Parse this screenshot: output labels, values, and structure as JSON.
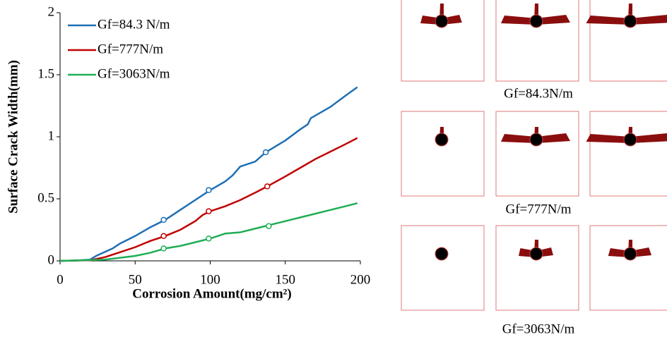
{
  "chart_data": {
    "type": "line",
    "x_label": "Corrosion Amount(mg/cm²)",
    "y_label": "Surface Crack Width(mm)",
    "xlim": [
      0,
      200
    ],
    "xticks": [
      0,
      50,
      100,
      150,
      200
    ],
    "ylim": [
      0,
      2
    ],
    "yticks": [
      0,
      0.5,
      1,
      1.5,
      2
    ],
    "legend": "upper-left",
    "series": [
      {
        "name": "Gf=84.3 N/m",
        "color": "#1f6fb4",
        "x": [
          0,
          10,
          20,
          24,
          35,
          40,
          50,
          60,
          70,
          80,
          90,
          100,
          110,
          115,
          120,
          130,
          137,
          150,
          160,
          165,
          167,
          180,
          190,
          198
        ],
        "values": [
          0,
          0.002,
          0.01,
          0.04,
          0.1,
          0.14,
          0.2,
          0.27,
          0.33,
          0.41,
          0.49,
          0.57,
          0.64,
          0.69,
          0.76,
          0.8,
          0.875,
          0.97,
          1.06,
          1.1,
          1.15,
          1.24,
          1.33,
          1.4
        ],
        "markers": {
          "x": [
            69,
            99,
            137
          ],
          "y": [
            0.33,
            0.57,
            0.875
          ]
        }
      },
      {
        "name": "Gf=777N/m",
        "color": "#c00000",
        "x": [
          0,
          20,
          30,
          40,
          50,
          60,
          70,
          80,
          90,
          95,
          100,
          110,
          120,
          130,
          138,
          150,
          160,
          170,
          180,
          190,
          198
        ],
        "values": [
          0,
          0.005,
          0.03,
          0.07,
          0.11,
          0.16,
          0.2,
          0.25,
          0.32,
          0.37,
          0.4,
          0.44,
          0.49,
          0.55,
          0.6,
          0.68,
          0.75,
          0.82,
          0.88,
          0.94,
          0.99
        ],
        "markers": {
          "x": [
            69,
            99,
            138
          ],
          "y": [
            0.2,
            0.4,
            0.6
          ]
        }
      },
      {
        "name": "Gf=3063N/m",
        "color": "#1fae55",
        "x": [
          0,
          30,
          40,
          50,
          60,
          70,
          80,
          90,
          100,
          105,
          110,
          120,
          130,
          140,
          150,
          160,
          170,
          180,
          190,
          198
        ],
        "values": [
          0,
          0.01,
          0.025,
          0.04,
          0.065,
          0.1,
          0.12,
          0.15,
          0.18,
          0.2,
          0.22,
          0.23,
          0.26,
          0.29,
          0.32,
          0.35,
          0.38,
          0.41,
          0.44,
          0.465
        ],
        "markers": {
          "x": [
            69,
            99,
            139
          ],
          "y": [
            0.1,
            0.18,
            0.28
          ]
        }
      }
    ]
  },
  "panels": {
    "labels": [
      "Gf=84.3N/m",
      "Gf=777N/m",
      "Gf=3063N/m"
    ]
  }
}
